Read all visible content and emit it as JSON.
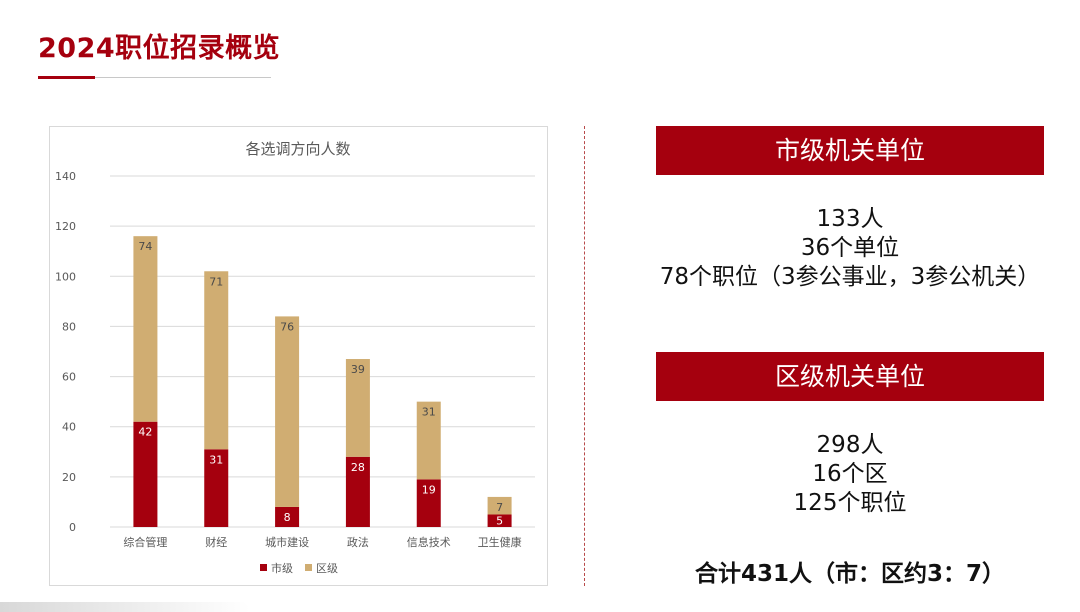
{
  "page": {
    "title": "2024职位招录概览"
  },
  "colors": {
    "brand": "#a5000e",
    "city": "#a5000e",
    "district": "#d0ad72"
  },
  "chart_data": {
    "type": "bar",
    "stacked": true,
    "title": "各选调方向人数",
    "categories": [
      "综合管理",
      "财经",
      "城市建设",
      "政法",
      "信息技术",
      "卫生健康"
    ],
    "series": [
      {
        "name": "市级",
        "values": [
          42,
          31,
          8,
          28,
          19,
          5
        ],
        "color": "#a5000e"
      },
      {
        "name": "区级",
        "values": [
          74,
          71,
          76,
          39,
          31,
          7
        ],
        "color": "#d0ad72"
      }
    ],
    "ylim": [
      0,
      140
    ],
    "yticks": [
      "0",
      "20",
      "40",
      "60",
      "80",
      "100",
      "120",
      "140"
    ],
    "grid": true,
    "legend": "bottom"
  },
  "city": {
    "header": "市级机关单位",
    "lines": [
      "133人",
      "36个单位",
      "78个职位（3参公事业，3参公机关）"
    ]
  },
  "district": {
    "header": "区级机关单位",
    "lines": [
      "298人",
      "16个区",
      "125个职位"
    ]
  },
  "total": "合计431人（市：区约3：7）"
}
